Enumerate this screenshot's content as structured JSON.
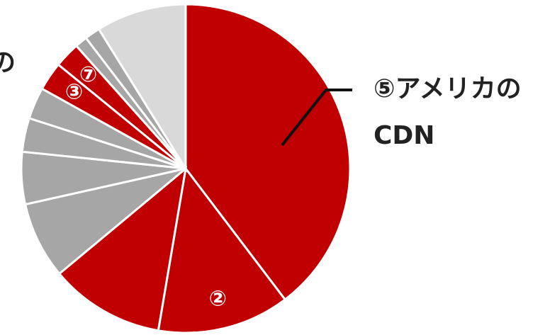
{
  "chart_data": {
    "type": "pie",
    "categories": [
      null,
      "②",
      null,
      null,
      null,
      null,
      null,
      "③",
      "⑦",
      null,
      null,
      null
    ],
    "values": [
      39.4,
      12.9,
      11.2,
      7.5,
      5.1,
      3.3,
      3.1,
      2.8,
      2.5,
      1.2,
      1.5,
      8.8
    ],
    "colors": [
      "#c00000",
      "#c00000",
      "#c00000",
      "#a6a6a6",
      "#a6a6a6",
      "#a6a6a6",
      "#a6a6a6",
      "#c00000",
      "#c00000",
      "#a6a6a6",
      "#a6a6a6",
      "#d9d9d9"
    ],
    "callout_lines": [
      "⑤アメリカの",
      "CDN"
    ],
    "partial_label": "の"
  }
}
